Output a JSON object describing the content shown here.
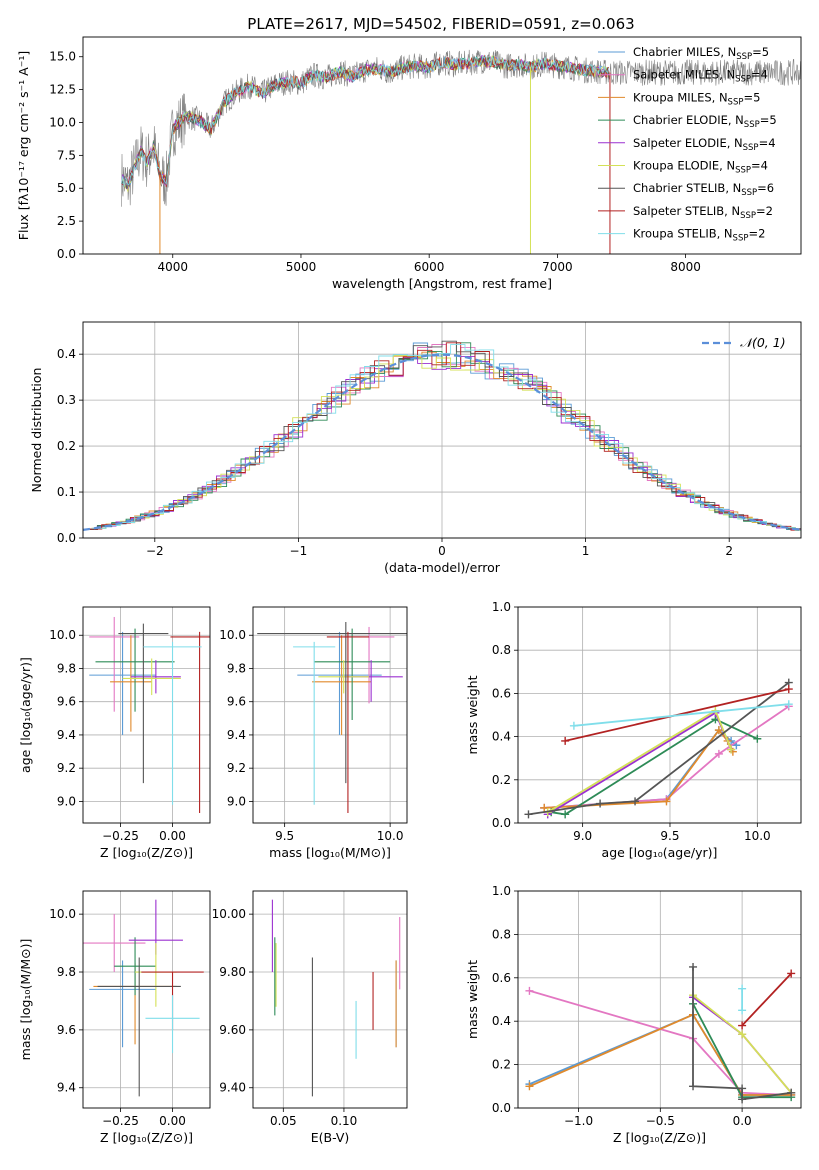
{
  "figure": {
    "title": "PLATE=2617, MJD=54502, FIBERID=0591, z=0.063"
  },
  "legend_top": [
    {
      "label": "Chabrier MILES, N",
      "sub": "SSP",
      "suffix": "=5",
      "color": "#5b9bd5"
    },
    {
      "label": "Salpeter MILES, N",
      "sub": "SSP",
      "suffix": "=4",
      "color": "#e377c2"
    },
    {
      "label": "Kroupa MILES, N",
      "sub": "SSP",
      "suffix": "=5",
      "color": "#e08a2c"
    },
    {
      "label": "Chabrier ELODIE, N",
      "sub": "SSP",
      "suffix": "=5",
      "color": "#2e8b57"
    },
    {
      "label": "Salpeter ELODIE, N",
      "sub": "SSP",
      "suffix": "=4",
      "color": "#9b30d0"
    },
    {
      "label": "Kroupa ELODIE, N",
      "sub": "SSP",
      "suffix": "=4",
      "color": "#d4e157"
    },
    {
      "label": "Chabrier STELIB, N",
      "sub": "SSP",
      "suffix": "=6",
      "color": "#555555"
    },
    {
      "label": "Salpeter STELIB, N",
      "sub": "SSP",
      "suffix": "=2",
      "color": "#b22222"
    },
    {
      "label": "Kroupa STELIB, N",
      "sub": "SSP",
      "suffix": "=2",
      "color": "#80deea"
    }
  ],
  "chart_data": [
    {
      "id": "spectrum",
      "type": "line",
      "xlabel": "wavelength [Angstrom, rest frame]",
      "ylabel": "Flux [fλ10⁻¹⁷ erg cm⁻² s⁻¹ A⁻¹]",
      "xlim": [
        3300,
        8900
      ],
      "ylim": [
        0,
        16.5
      ],
      "xticks": [
        4000,
        5000,
        6000,
        7000,
        8000
      ],
      "yticks": [
        0.0,
        2.5,
        5.0,
        7.5,
        10.0,
        12.5,
        15.0
      ],
      "x": [
        3600,
        3650,
        3700,
        3750,
        3800,
        3850,
        3900,
        3950,
        4000,
        4100,
        4200,
        4300,
        4400,
        4500,
        4600,
        4700,
        4800,
        4900,
        5000,
        5100,
        5200,
        5300,
        5400,
        5500,
        5600,
        5700,
        5800,
        5900,
        6000,
        6100,
        6200,
        6300,
        6400,
        6500,
        6600,
        6700,
        6800,
        6900,
        7000,
        7100,
        7200,
        7300,
        7400
      ],
      "flux": [
        5.8,
        5.2,
        6.5,
        7.8,
        7.0,
        8.2,
        6.0,
        5.5,
        9.5,
        10.5,
        10.2,
        9.5,
        11.5,
        12.3,
        12.8,
        12.2,
        12.9,
        13.1,
        13.0,
        13.6,
        13.4,
        13.9,
        13.5,
        14.0,
        14.1,
        13.8,
        14.2,
        14.3,
        14.2,
        14.6,
        14.4,
        14.5,
        14.7,
        14.6,
        14.3,
        14.4,
        14.2,
        14.5,
        14.3,
        14.2,
        14.0,
        13.9,
        13.8
      ],
      "observed_extends_to": 8900
    },
    {
      "id": "residuals",
      "type": "histogram",
      "xlabel": "(data-model)/error",
      "ylabel": "Normed distribution",
      "xlim": [
        -2.5,
        2.5
      ],
      "ylim": [
        0,
        0.47
      ],
      "xticks": [
        -2,
        -1,
        0,
        1,
        2
      ],
      "yticks": [
        0.0,
        0.1,
        0.2,
        0.3,
        0.4
      ],
      "legend": "𝒩(0, 1)",
      "bin_width": 0.1,
      "bin_start": -2.5
    },
    {
      "id": "age_vs_Z",
      "type": "errorbar",
      "xlabel": "Z [log₁₀(Z/Z⊙)]",
      "ylabel": "age  [log₁₀(age/yr)]",
      "xlim": [
        -0.43,
        0.18
      ],
      "ylim": [
        8.87,
        10.17
      ],
      "xticks": [
        -0.25,
        0.0
      ],
      "yticks": [
        9.0,
        9.2,
        9.4,
        9.6,
        9.8,
        10.0
      ],
      "points": [
        {
          "x": -0.24,
          "y": 9.76,
          "xerr": 0.16,
          "yerr_lo": 0.36,
          "yerr_hi": 0.26,
          "color": "#5b9bd5"
        },
        {
          "x": -0.28,
          "y": 9.99,
          "xerr": 0.12,
          "yerr_lo": 0.45,
          "yerr_hi": 0.12,
          "color": "#e377c2"
        },
        {
          "x": -0.2,
          "y": 9.72,
          "xerr": 0.1,
          "yerr_lo": 0.3,
          "yerr_hi": 0.28,
          "color": "#e08a2c"
        },
        {
          "x": -0.18,
          "y": 9.84,
          "xerr": 0.19,
          "yerr_lo": 0.3,
          "yerr_hi": 0.2,
          "color": "#2e8b57"
        },
        {
          "x": -0.08,
          "y": 9.75,
          "xerr": 0.12,
          "yerr_lo": 0.1,
          "yerr_hi": 0.1,
          "color": "#9b30d0"
        },
        {
          "x": -0.1,
          "y": 9.74,
          "xerr": 0.14,
          "yerr_lo": 0.1,
          "yerr_hi": 0.12,
          "color": "#d4e157"
        },
        {
          "x": -0.14,
          "y": 10.01,
          "xerr": 0.12,
          "yerr_lo": 0.9,
          "yerr_hi": 0.06,
          "color": "#555555"
        },
        {
          "x": 0.13,
          "y": 9.99,
          "xerr": 0.14,
          "yerr_lo": 1.06,
          "yerr_hi": 0.03,
          "color": "#b22222"
        },
        {
          "x": 0.0,
          "y": 9.93,
          "xerr": 0.14,
          "yerr_lo": 0.95,
          "yerr_hi": 0.03,
          "color": "#80deea"
        }
      ]
    },
    {
      "id": "age_vs_mass",
      "type": "errorbar",
      "xlabel": "mass [log₁₀(M/M⊙)]",
      "ylabel": "",
      "xlim": [
        9.35,
        10.08
      ],
      "ylim": [
        8.87,
        10.17
      ],
      "xticks": [
        9.5,
        10.0
      ],
      "yticks": [
        9.0,
        9.2,
        9.4,
        9.6,
        9.8,
        10.0
      ],
      "points": [
        {
          "x": 9.76,
          "y": 9.76,
          "xerr": 0.2,
          "yerr_lo": 0.36,
          "yerr_hi": 0.26,
          "color": "#5b9bd5"
        },
        {
          "x": 9.9,
          "y": 9.99,
          "xerr": 0.12,
          "yerr_lo": 0.4,
          "yerr_hi": 0.06,
          "color": "#e377c2"
        },
        {
          "x": 9.77,
          "y": 9.72,
          "xerr": 0.14,
          "yerr_lo": 0.32,
          "yerr_hi": 0.28,
          "color": "#e08a2c"
        },
        {
          "x": 9.82,
          "y": 9.84,
          "xerr": 0.18,
          "yerr_lo": 0.35,
          "yerr_hi": 0.2,
          "color": "#2e8b57"
        },
        {
          "x": 9.91,
          "y": 9.75,
          "xerr": 0.15,
          "yerr_lo": 0.15,
          "yerr_hi": 0.1,
          "color": "#9b30d0"
        },
        {
          "x": 9.78,
          "y": 9.75,
          "xerr": 0.12,
          "yerr_lo": 0.1,
          "yerr_hi": 0.1,
          "color": "#d4e157"
        },
        {
          "x": 9.79,
          "y": 10.01,
          "xerr": 0.42,
          "yerr_lo": 0.9,
          "yerr_hi": 0.07,
          "color": "#555555"
        },
        {
          "x": 9.8,
          "y": 9.99,
          "xerr": 0.1,
          "yerr_lo": 1.06,
          "yerr_hi": 0.03,
          "color": "#b22222"
        },
        {
          "x": 9.64,
          "y": 9.93,
          "xerr": 0.1,
          "yerr_lo": 0.95,
          "yerr_hi": 0.03,
          "color": "#80deea"
        }
      ]
    },
    {
      "id": "massweight_vs_age",
      "type": "line",
      "xlabel": "age  [log₁₀(age/yr)]",
      "ylabel": "mass weight",
      "xlim": [
        8.63,
        10.25
      ],
      "ylim": [
        0,
        1.0
      ],
      "xticks": [
        9.0,
        9.5,
        10.0
      ],
      "yticks": [
        0.0,
        0.2,
        0.4,
        0.6,
        0.8,
        1.0
      ],
      "series": [
        {
          "color": "#5b9bd5",
          "x": [
            8.78,
            9.48,
            9.78,
            9.85,
            9.88
          ],
          "y": [
            0.07,
            0.11,
            0.43,
            0.38,
            0.36
          ]
        },
        {
          "color": "#e377c2",
          "x": [
            8.78,
            9.48,
            9.78,
            10.18
          ],
          "y": [
            0.07,
            0.11,
            0.32,
            0.54
          ]
        },
        {
          "color": "#e08a2c",
          "x": [
            8.78,
            9.48,
            9.78,
            9.83,
            9.86
          ],
          "y": [
            0.07,
            0.1,
            0.43,
            0.38,
            0.33
          ]
        },
        {
          "color": "#2e8b57",
          "x": [
            8.82,
            8.9,
            9.76,
            10.0
          ],
          "y": [
            0.05,
            0.04,
            0.48,
            0.39
          ]
        },
        {
          "color": "#9b30d0",
          "x": [
            8.8,
            9.76,
            9.85
          ],
          "y": [
            0.04,
            0.51,
            0.34
          ]
        },
        {
          "color": "#d4e157",
          "x": [
            8.8,
            9.76,
            9.85
          ],
          "y": [
            0.05,
            0.52,
            0.34
          ]
        },
        {
          "color": "#555555",
          "x": [
            8.69,
            9.1,
            9.3,
            10.18
          ],
          "y": [
            0.04,
            0.09,
            0.1,
            0.65
          ]
        },
        {
          "color": "#b22222",
          "x": [
            8.9,
            10.18
          ],
          "y": [
            0.38,
            0.62
          ]
        },
        {
          "color": "#80deea",
          "x": [
            8.95,
            10.18
          ],
          "y": [
            0.45,
            0.55
          ]
        }
      ]
    },
    {
      "id": "mass_vs_Z",
      "type": "errorbar",
      "xlabel": "Z [log₁₀(Z/Z⊙)]",
      "ylabel": "mass [log₁₀(M/M⊙)]",
      "xlim": [
        -0.43,
        0.18
      ],
      "ylim": [
        9.33,
        10.08
      ],
      "xticks": [
        -0.25,
        0.0
      ],
      "yticks": [
        9.4,
        9.6,
        9.8,
        10.0
      ],
      "points": [
        {
          "x": -0.24,
          "y": 9.74,
          "xerr": 0.16,
          "yerr_lo": 0.2,
          "yerr_hi": 0.1,
          "color": "#5b9bd5"
        },
        {
          "x": -0.28,
          "y": 9.9,
          "xerr": 0.15,
          "yerr_lo": 0.1,
          "yerr_hi": 0.1,
          "color": "#e377c2"
        },
        {
          "x": -0.18,
          "y": 9.75,
          "xerr": 0.2,
          "yerr_lo": 0.2,
          "yerr_hi": 0.08,
          "color": "#e08a2c"
        },
        {
          "x": -0.18,
          "y": 9.82,
          "xerr": 0.1,
          "yerr_lo": 0.1,
          "yerr_hi": 0.1,
          "color": "#2e8b57"
        },
        {
          "x": -0.08,
          "y": 9.91,
          "xerr": 0.13,
          "yerr_lo": 0.05,
          "yerr_hi": 0.14,
          "color": "#9b30d0"
        },
        {
          "x": -0.08,
          "y": 9.8,
          "xerr": 0.1,
          "yerr_lo": 0.12,
          "yerr_hi": 0.1,
          "color": "#d4e157"
        },
        {
          "x": -0.16,
          "y": 9.75,
          "xerr": 0.2,
          "yerr_lo": 0.38,
          "yerr_hi": 0.1,
          "color": "#555555"
        },
        {
          "x": 0.0,
          "y": 9.8,
          "xerr": 0.15,
          "yerr_lo": 0.2,
          "yerr_hi": 0.0,
          "color": "#b22222"
        },
        {
          "x": 0.0,
          "y": 9.64,
          "xerr": 0.13,
          "yerr_lo": 0.12,
          "yerr_hi": 0.08,
          "color": "#80deea"
        }
      ]
    },
    {
      "id": "mass_vs_ebv",
      "type": "errorbar",
      "xlabel": "E(B-V)",
      "ylabel": "",
      "xlim": [
        0.025,
        0.152
      ],
      "ylim": [
        9.33,
        10.08
      ],
      "xticks": [
        0.05,
        0.1
      ],
      "yticks": [
        9.4,
        9.6,
        9.8,
        10.0
      ],
      "points": [
        {
          "x": 0.143,
          "y": 9.74,
          "yerr_lo": 0.2,
          "yerr_hi": 0.1,
          "color": "#5b9bd5"
        },
        {
          "x": 0.146,
          "y": 9.9,
          "yerr_lo": 0.16,
          "yerr_hi": 0.09,
          "color": "#e377c2"
        },
        {
          "x": 0.143,
          "y": 9.74,
          "yerr_lo": 0.2,
          "yerr_hi": 0.1,
          "color": "#e08a2c"
        },
        {
          "x": 0.043,
          "y": 9.82,
          "yerr_lo": 0.17,
          "yerr_hi": 0.1,
          "color": "#2e8b57"
        },
        {
          "x": 0.041,
          "y": 9.9,
          "yerr_lo": 0.1,
          "yerr_hi": 0.15,
          "color": "#9b30d0"
        },
        {
          "x": 0.044,
          "y": 9.8,
          "yerr_lo": 0.12,
          "yerr_hi": 0.1,
          "color": "#d4e157"
        },
        {
          "x": 0.074,
          "y": 9.7,
          "yerr_lo": 0.33,
          "yerr_hi": 0.15,
          "color": "#555555"
        },
        {
          "x": 0.124,
          "y": 9.7,
          "yerr_lo": 0.1,
          "yerr_hi": 0.1,
          "color": "#b22222"
        },
        {
          "x": 0.11,
          "y": 9.6,
          "yerr_lo": 0.1,
          "yerr_hi": 0.1,
          "color": "#80deea"
        }
      ]
    },
    {
      "id": "massweight_vs_Z",
      "type": "line",
      "xlabel": "Z [log₁₀(Z/Z⊙)]",
      "ylabel": "mass weight",
      "xlim": [
        -1.37,
        0.36
      ],
      "ylim": [
        0,
        1.0
      ],
      "xticks": [
        -1.0,
        -0.5,
        0.0
      ],
      "yticks": [
        0.0,
        0.2,
        0.4,
        0.6,
        0.8,
        1.0
      ],
      "series": [
        {
          "color": "#5b9bd5",
          "x": [
            -1.3,
            -0.3,
            0.0,
            0.3
          ],
          "y": [
            0.11,
            0.43,
            0.06,
            0.06
          ]
        },
        {
          "color": "#e377c2",
          "x": [
            -1.3,
            -0.3,
            0.0,
            0.3
          ],
          "y": [
            0.54,
            0.32,
            0.07,
            0.06
          ]
        },
        {
          "color": "#e08a2c",
          "x": [
            -1.3,
            -0.3,
            0.0,
            0.3
          ],
          "y": [
            0.1,
            0.43,
            0.06,
            0.06
          ]
        },
        {
          "color": "#2e8b57",
          "x": [
            -0.3,
            0.0,
            0.3
          ],
          "y": [
            0.48,
            0.05,
            0.05
          ]
        },
        {
          "color": "#9b30d0",
          "x": [
            -0.3,
            0.0,
            0.3
          ],
          "y": [
            0.51,
            0.34,
            0.07
          ]
        },
        {
          "color": "#d4e157",
          "x": [
            -0.3,
            0.0,
            0.3
          ],
          "y": [
            0.52,
            0.34,
            0.07
          ]
        },
        {
          "color": "#555555",
          "x": [
            -0.3,
            -0.3,
            0.0,
            0.0,
            0.3
          ],
          "y": [
            0.65,
            0.1,
            0.09,
            0.04,
            0.07
          ]
        },
        {
          "color": "#b22222",
          "x": [
            0.0,
            0.3
          ],
          "y": [
            0.38,
            0.62
          ]
        },
        {
          "color": "#80deea",
          "x": [
            0.0,
            0.0
          ],
          "y": [
            0.45,
            0.55
          ]
        }
      ]
    }
  ]
}
